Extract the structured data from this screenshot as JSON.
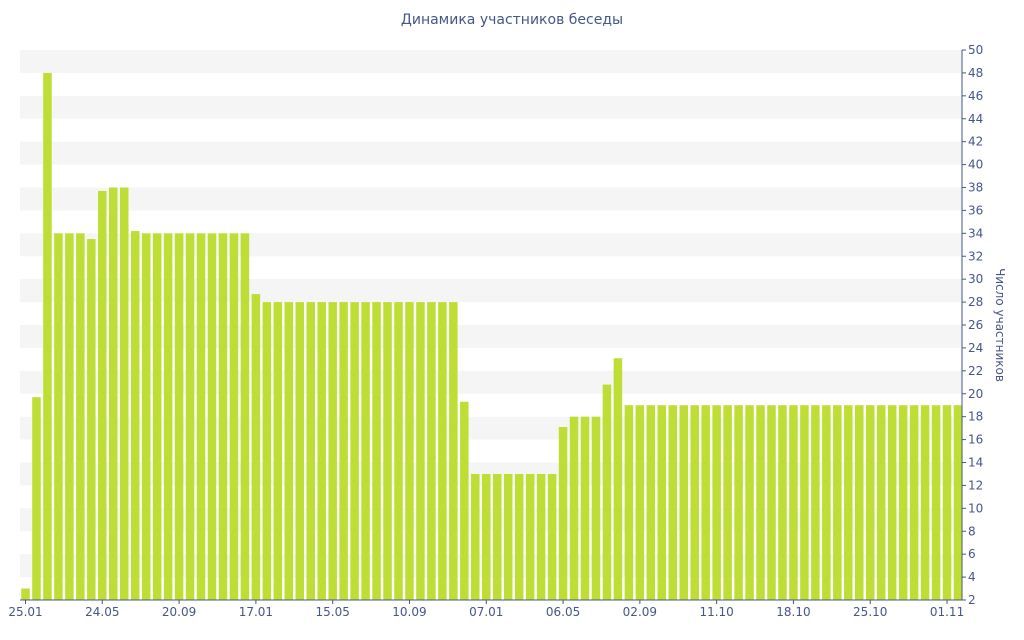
{
  "chart_data": {
    "type": "bar",
    "title": "Динамика участников беседы",
    "xlabel": "",
    "ylabel": "Число участников",
    "y_axis_side": "right",
    "grid": "alternating horizontal bands",
    "ylim": [
      2,
      50
    ],
    "yticks": [
      2,
      4,
      6,
      8,
      10,
      12,
      14,
      16,
      18,
      20,
      22,
      24,
      26,
      28,
      30,
      32,
      34,
      36,
      38,
      40,
      42,
      44,
      46,
      48,
      50
    ],
    "xtick_labels": [
      "25.01",
      "24.05",
      "20.09",
      "17.01",
      "15.05",
      "10.09",
      "07.01",
      "06.05",
      "02.09",
      "11.10",
      "18.10",
      "25.10",
      "01.11"
    ],
    "xtick_bar_index": [
      0,
      7,
      14,
      21,
      28,
      35,
      42,
      49,
      56,
      63,
      70,
      77,
      84
    ],
    "values": [
      3,
      19.7,
      48,
      34,
      34,
      34,
      33.5,
      37.7,
      38,
      38,
      34.2,
      34,
      34,
      34,
      34,
      34,
      34,
      34,
      34,
      34,
      34,
      28.7,
      28,
      28,
      28,
      28,
      28,
      28,
      28,
      28,
      28,
      28,
      28,
      28,
      28,
      28,
      28,
      28,
      28,
      28,
      19.3,
      13,
      13,
      13,
      13,
      13,
      13,
      13,
      13,
      17.1,
      18,
      18,
      18,
      20.8,
      23.1,
      19,
      19,
      19,
      19,
      19,
      19,
      19,
      19,
      19,
      19,
      19,
      19,
      19,
      19,
      19,
      19,
      19,
      19,
      19,
      19,
      19,
      19,
      19,
      19,
      19,
      19,
      19,
      19,
      19,
      19,
      19
    ],
    "bar_color": "#bede35",
    "band_color": "#f5f5f5",
    "text_color": "#45568a"
  }
}
